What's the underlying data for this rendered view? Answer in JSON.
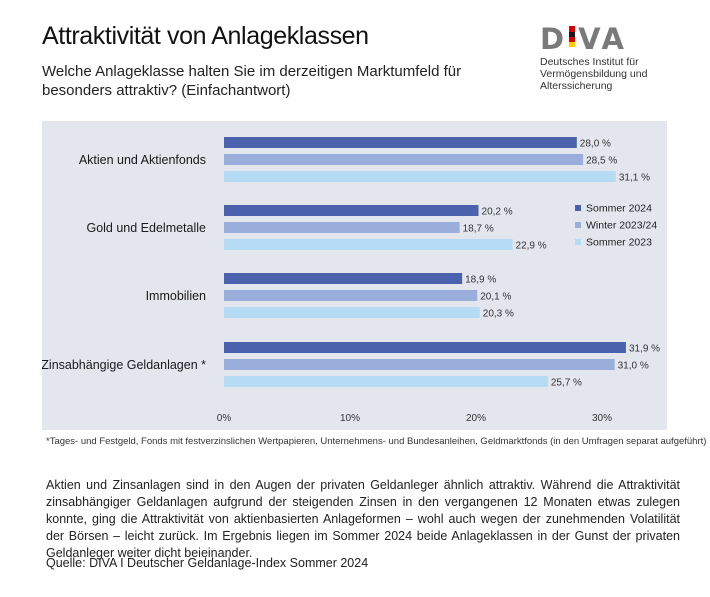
{
  "header": {
    "title": "Attraktivität von Anlageklassen",
    "subtitle": "Welche Anlageklasse halten Sie im derzeitigen Marktumfeld für besonders attraktiv? (Einfachantwort)"
  },
  "logo": {
    "word": [
      "D",
      "V",
      "A"
    ],
    "line1": "Deutsches Institut für",
    "line2": "Vermögensbildung und Alterssicherung",
    "colors": [
      "#1a1a1a",
      "#dd0000",
      "#ffcc00"
    ]
  },
  "chart_data": {
    "type": "bar",
    "orientation": "horizontal",
    "title": "Attraktivität von Anlageklassen",
    "categories": [
      "Aktien und Aktienfonds",
      "Gold und Edelmetalle",
      "Immobilien",
      "Zinsabhängige Geldanlagen *"
    ],
    "series": [
      {
        "name": "Sommer 2024",
        "color": "#4a62ad",
        "values": [
          28.0,
          20.2,
          18.9,
          31.9
        ],
        "labels": [
          "28,0 %",
          "20,2 %",
          "18,9 %",
          "31,9 %"
        ]
      },
      {
        "name": "Winter 2023/24",
        "color": "#9aaedb",
        "values": [
          28.5,
          18.7,
          20.1,
          31.0
        ],
        "labels": [
          "28,5 %",
          "18,7 %",
          "20,1 %",
          "31,0 %"
        ]
      },
      {
        "name": "Sommer 2023",
        "color": "#b4daf4",
        "values": [
          31.1,
          22.9,
          20.3,
          25.7
        ],
        "labels": [
          "31,1 %",
          "22,9 %",
          "20,3 %",
          "25,7 %"
        ]
      }
    ],
    "xlim": [
      0,
      35
    ],
    "ticks": [
      0,
      10,
      20,
      30
    ],
    "tick_labels": [
      "0%",
      "10%",
      "20%",
      "30%"
    ],
    "grid": false,
    "legend": "right"
  },
  "footnote": "*Tages- und Festgeld, Fonds mit festverzinslichen Wertpapieren, Unternehmens- und Bundesanleihen, Geldmarktfonds (in den Umfragen separat aufgeführt)",
  "body_text": "Aktien und Zinsanlagen sind in den Augen der privaten Geldanleger ähnlich attraktiv. Während die Attraktivität zinsabhängiger Geldanlagen aufgrund der steigenden Zinsen in den vergangenen 12 Monaten etwas zulegen konnte, ging die Attraktivität von aktienbasierten Anlageformen – wohl auch wegen der zunehmenden Volatilität der Börsen – leicht zurück. Im Ergebnis liegen im Sommer 2024 beide Anlageklassen in der Gunst der privaten Geldanleger weiter dicht beieinander.",
  "source": "Quelle: DIVA I Deutscher Geldanlage-Index Sommer 2024"
}
